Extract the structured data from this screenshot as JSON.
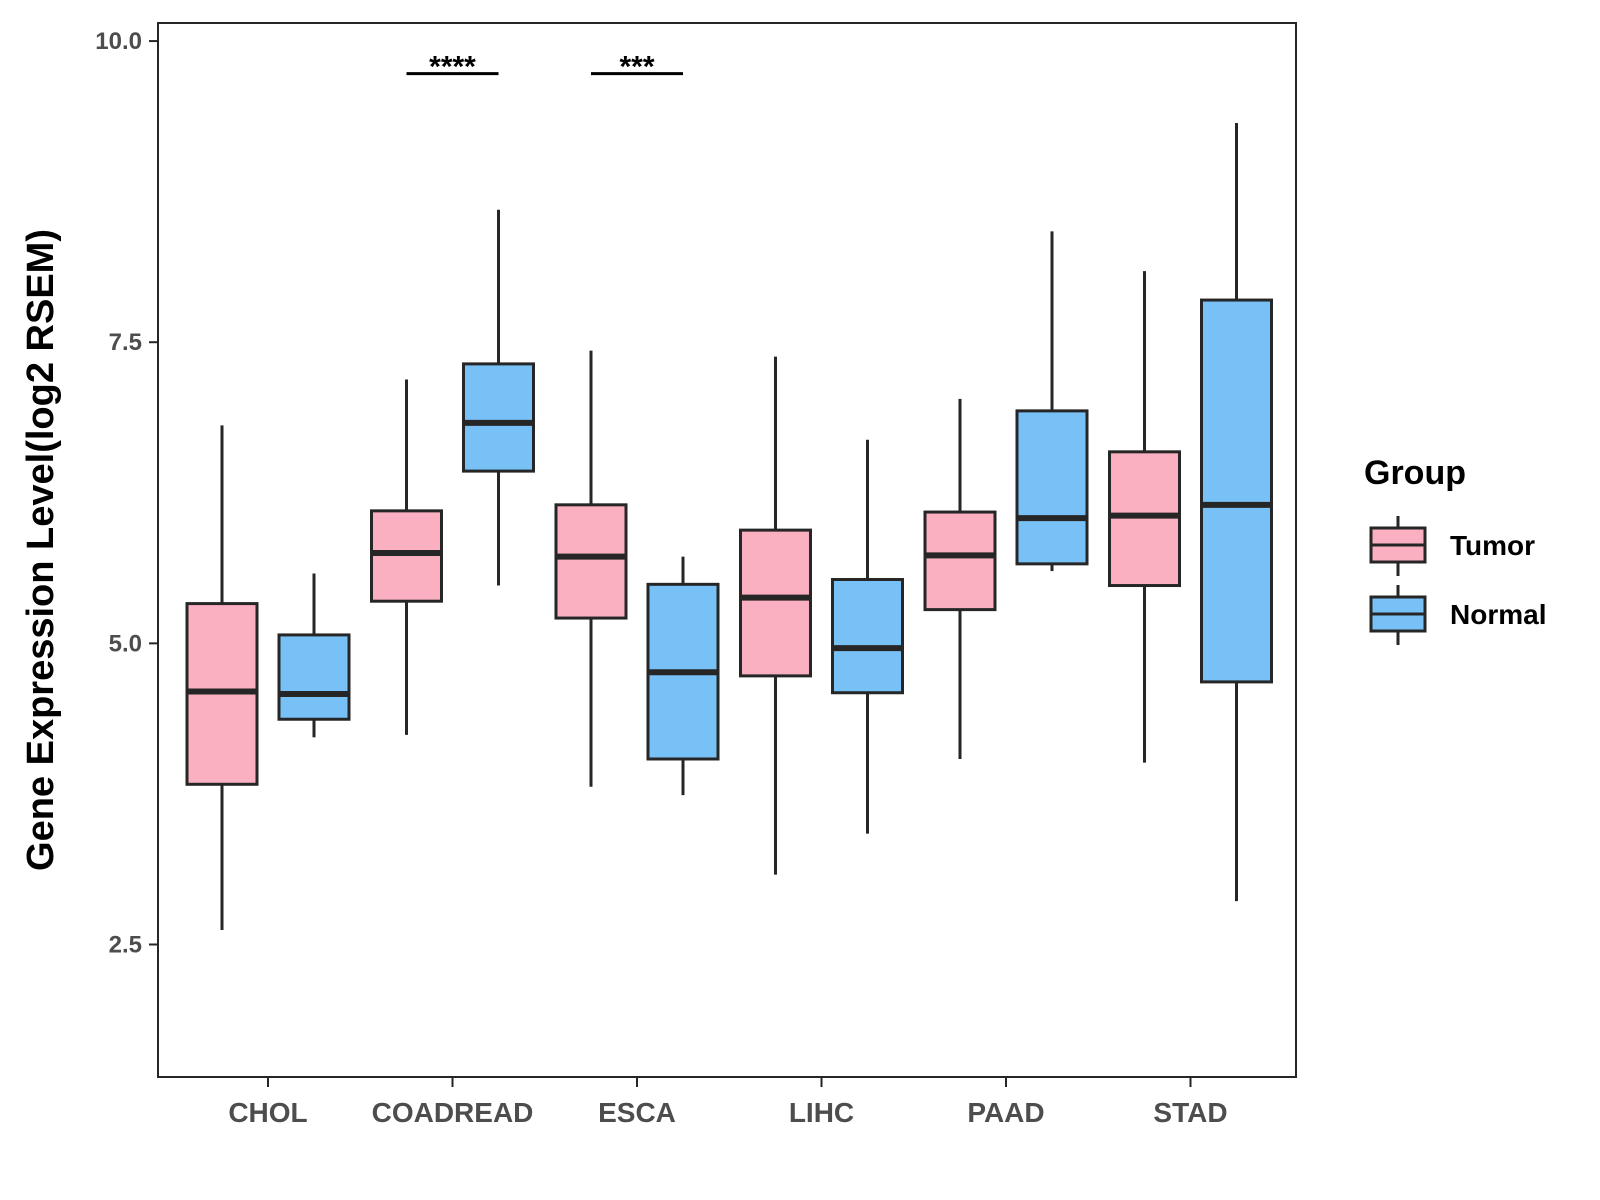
{
  "chart_data": {
    "type": "boxplot",
    "title": "",
    "xlabel": "",
    "ylabel": "Gene Expression Level(log2 RSEM)",
    "ylim": [
      1.4,
      10.15
    ],
    "yticks": [
      2.5,
      5.0,
      7.5,
      10.0
    ],
    "ytick_labels": [
      "2.5",
      "5.0",
      "7.5",
      "10.0"
    ],
    "categories": [
      "CHOL",
      "COADREAD",
      "ESCA",
      "LIHC",
      "PAAD",
      "STAD"
    ],
    "legend": {
      "title": "Group",
      "placement": "right",
      "entries": [
        "Tumor",
        "Normal"
      ]
    },
    "colors": {
      "Tumor": "#FBB0C2",
      "Normal": "#78C1F7",
      "outline": "#262626"
    },
    "series": [
      {
        "name": "Tumor",
        "boxes": [
          {
            "category": "CHOL",
            "whisker_low": 2.62,
            "q1": 3.83,
            "median": 4.6,
            "q3": 5.33,
            "whisker_high": 6.81
          },
          {
            "category": "COADREAD",
            "whisker_low": 4.24,
            "q1": 5.35,
            "median": 5.75,
            "q3": 6.1,
            "whisker_high": 7.19
          },
          {
            "category": "ESCA",
            "whisker_low": 3.81,
            "q1": 5.21,
            "median": 5.72,
            "q3": 6.15,
            "whisker_high": 7.43
          },
          {
            "category": "LIHC",
            "whisker_low": 3.08,
            "q1": 4.73,
            "median": 5.38,
            "q3": 5.94,
            "whisker_high": 7.38
          },
          {
            "category": "PAAD",
            "whisker_low": 4.04,
            "q1": 5.28,
            "median": 5.73,
            "q3": 6.09,
            "whisker_high": 7.03
          },
          {
            "category": "STAD",
            "whisker_low": 4.01,
            "q1": 5.48,
            "median": 6.06,
            "q3": 6.59,
            "whisker_high": 8.09
          }
        ]
      },
      {
        "name": "Normal",
        "boxes": [
          {
            "category": "CHOL",
            "whisker_low": 4.22,
            "q1": 4.37,
            "median": 4.58,
            "q3": 5.07,
            "whisker_high": 5.58
          },
          {
            "category": "COADREAD",
            "whisker_low": 5.48,
            "q1": 6.43,
            "median": 6.83,
            "q3": 7.32,
            "whisker_high": 8.6
          },
          {
            "category": "ESCA",
            "whisker_low": 3.74,
            "q1": 4.04,
            "median": 4.76,
            "q3": 5.49,
            "whisker_high": 5.72
          },
          {
            "category": "LIHC",
            "whisker_low": 3.42,
            "q1": 4.59,
            "median": 4.96,
            "q3": 5.53,
            "whisker_high": 6.69
          },
          {
            "category": "PAAD",
            "whisker_low": 5.6,
            "q1": 5.66,
            "median": 6.04,
            "q3": 6.93,
            "whisker_high": 8.42
          },
          {
            "category": "STAD",
            "whisker_low": 2.86,
            "q1": 4.68,
            "median": 6.15,
            "q3": 7.85,
            "whisker_high": 9.32
          }
        ]
      }
    ],
    "annotations": [
      {
        "category": "COADREAD",
        "text": "****",
        "y": 9.73
      },
      {
        "category": "ESCA",
        "text": "***",
        "y": 9.73
      }
    ]
  }
}
